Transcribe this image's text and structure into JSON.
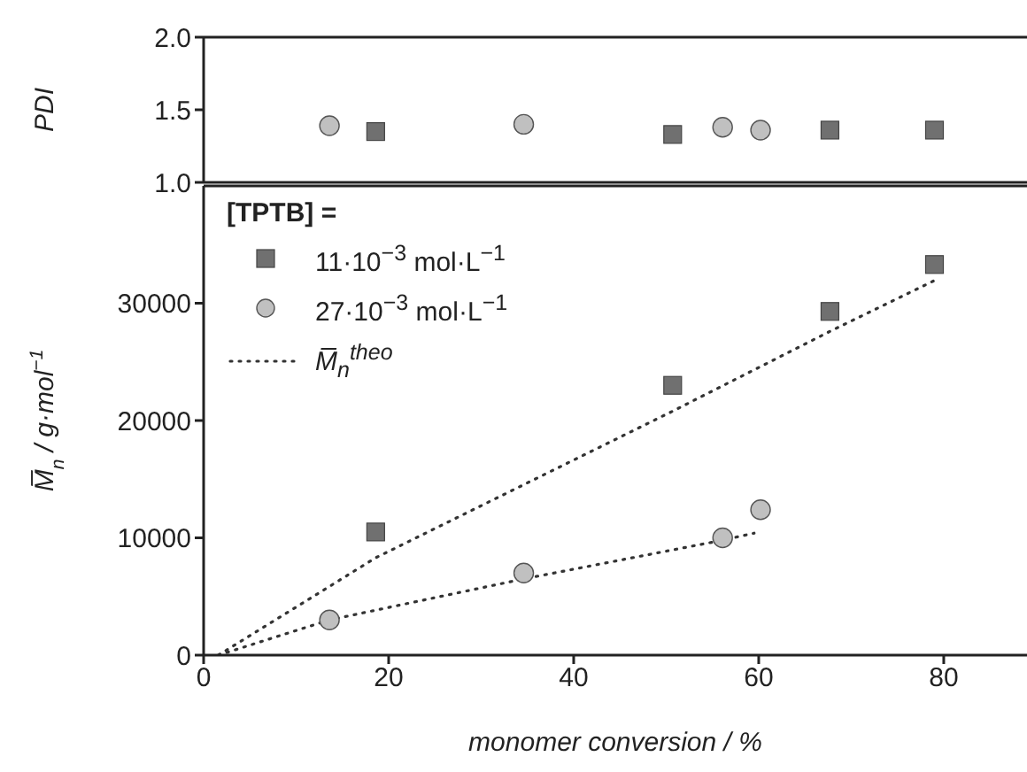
{
  "chart_data": [
    {
      "type": "scatter",
      "ylabel": "PDI",
      "xlim": [
        0,
        89
      ],
      "xticks": [
        0,
        20,
        40,
        60,
        80
      ],
      "ylim": [
        1,
        2
      ],
      "yticks": [
        {
          "value": 1,
          "label": "1.0"
        },
        1.5,
        {
          "value": 2,
          "label": "2.0"
        }
      ],
      "tick_labels": "y",
      "series": [
        {
          "marker": "square",
          "color": "#707070",
          "x": [
            18.6,
            50.7,
            67.7,
            79.0
          ],
          "values": [
            1.35,
            1.33,
            1.36,
            1.36
          ]
        },
        {
          "marker": "circle",
          "color": "#c0c0c0",
          "x": [
            13.6,
            34.6,
            56.1,
            60.2
          ],
          "values": [
            1.39,
            1.4,
            1.38,
            1.36
          ]
        }
      ]
    },
    {
      "type": "scatter",
      "xlabel": "monomer conversion / %",
      "ylabel": "M̅$_{n}$ / g·mol$^{−1}$",
      "legend_title": "[TPTB] =",
      "legend": "top left",
      "xlim": [
        0,
        89
      ],
      "xticks": [
        0,
        20,
        40,
        60,
        80
      ],
      "ylim": [
        0,
        40000
      ],
      "yticks": [
        0,
        10000,
        20000,
        30000
      ],
      "series": [
        {
          "name": "11·10$^{−3}$ mol·L$^{−1}$",
          "marker": "square",
          "color": "#707070",
          "x": [
            18.6,
            50.7,
            67.7,
            79.0
          ],
          "values": [
            10500,
            23000,
            29300,
            33300
          ]
        },
        {
          "name": "27·10$^{−3}$ mol·L$^{−1}$",
          "marker": "circle",
          "color": "#c0c0c0",
          "x": [
            13.6,
            34.6,
            56.1,
            60.2
          ],
          "values": [
            3000,
            7000,
            10000,
            12400
          ]
        },
        {
          "type": "line",
          "name": "M̅$_{n}$$^{theo}$",
          "line_style": "dotted",
          "marker": "none",
          "color": "#333333",
          "x": [
            1.6,
            18.6,
            50.7,
            67.7,
            78.9
          ],
          "values": [
            0,
            8300,
            20800,
            27600,
            31900
          ]
        },
        {
          "type": "line",
          "line_style": "dotted",
          "marker": "none",
          "color": "#333333",
          "x": [
            1.6,
            13.6,
            34.6,
            56.1,
            59.5
          ],
          "values": [
            0,
            3000,
            6500,
            9800,
            10400
          ]
        }
      ]
    }
  ]
}
